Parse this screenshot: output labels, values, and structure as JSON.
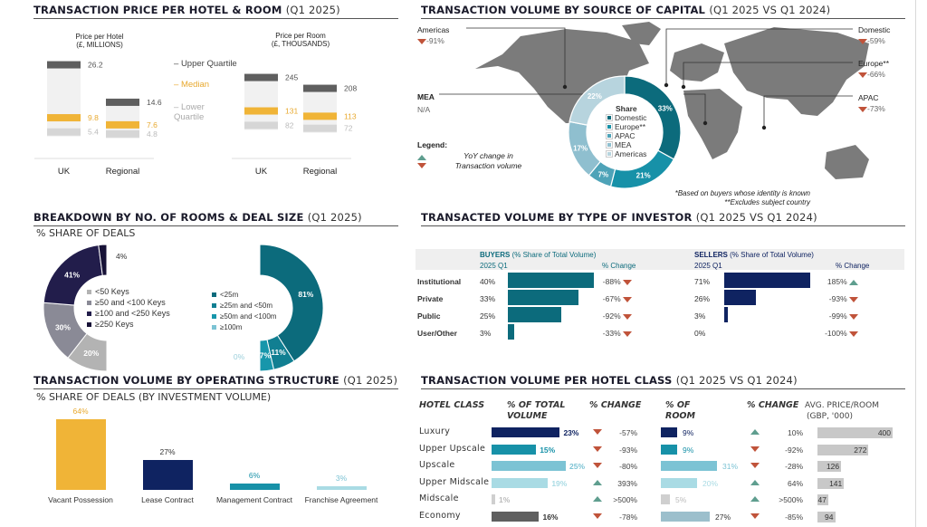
{
  "colors": {
    "dark_gray": "#5f5f5f",
    "light_gray": "#d6d6d6",
    "bg_gray": "#f1f1f1",
    "gold": "#f0b437",
    "navy": "#0f2361",
    "teal_dark": "#0c6b7c",
    "teal": "#1791a8",
    "teal_light": "#7cc3d4",
    "teal_pale": "#a9dbe4",
    "steel_light": "#9cbfcc",
    "down_red": "#c0533a",
    "up_green": "#5f9e8f",
    "map_gray": "#7b7b7b"
  },
  "price": {
    "title": "TRANSACTION PRICE PER HOTEL & ROOM",
    "title_sub": "(Q1 2025)",
    "legend": {
      "upper": "Upper Quartile",
      "median": "Median",
      "lower": "Lower Quartile"
    },
    "categories": [
      "UK",
      "Regional"
    ]
  },
  "capital": {
    "title": "TRANSACTION VOLUME BY SOURCE OF CAPITAL",
    "title_sub": "(Q1 2025 VS Q1 2024)",
    "regions": [
      {
        "name": "Americas",
        "change": "-91%",
        "dir": "down"
      },
      {
        "name": "MEA",
        "change": "N/A",
        "dir": "none"
      },
      {
        "name": "Domestic",
        "change": "-59%",
        "dir": "down"
      },
      {
        "name": "Europe**",
        "change": "-66%",
        "dir": "down"
      },
      {
        "name": "APAC",
        "change": "-73%",
        "dir": "down"
      }
    ],
    "legend_label": "Legend:",
    "legend_text_1": "YoY change in",
    "legend_text_2": "Transaction volume",
    "share_title": "Share",
    "footnote_1": "*Based on buyers whose identity is known",
    "footnote_2": "**Excludes subject country"
  },
  "breakdown": {
    "title": "BREAKDOWN BY NO. OF ROOMS & DEAL SIZE",
    "title_sub": "(Q1 2025)",
    "subtitle": "% SHARE OF DEALS"
  },
  "investor": {
    "title": "TRANSACTED VOLUME BY TYPE OF INVESTOR",
    "title_sub": "(Q1 2025 VS Q1 2024)",
    "buyers_title": "BUYERS",
    "buyers_sub": "(% Share of Total Volume)",
    "sellers_title": "SELLERS",
    "sellers_sub": "(% Share of Total Volume)",
    "period": "2025 Q1",
    "change_label": "% Change",
    "rows": [
      "Institutional",
      "Private",
      "Public",
      "User/Other"
    ]
  },
  "operating": {
    "title": "TRANSACTION VOLUME BY OPERATING STRUCTURE",
    "title_sub": "(Q1 2025)",
    "subtitle": "% SHARE OF DEALS (BY INVESTMENT VOLUME)"
  },
  "hotel_class": {
    "title": "TRANSACTION VOLUME PER HOTEL CLASS",
    "title_sub": "(Q1 2025 VS Q1 2024)",
    "headers": {
      "class": "HOTEL CLASS",
      "vol_1": "% OF TOTAL",
      "vol_2": "VOLUME",
      "chg": "% CHANGE",
      "room_1": "% OF",
      "room_2": "ROOM",
      "chg2": "% CHANGE",
      "price_1": "AVG. PRICE/ROOM",
      "price_2": "(GBP, '000)"
    }
  },
  "chart_data": [
    {
      "id": "price_per_hotel",
      "type": "bar",
      "title": "Price per Hotel",
      "unit": "(£, MILLIONS)",
      "categories": [
        "UK",
        "Regional"
      ],
      "series": [
        {
          "name": "Upper Quartile",
          "values": [
            26.2,
            14.6
          ],
          "labels": [
            "26.2",
            "14.6"
          ]
        },
        {
          "name": "Median",
          "values": [
            9.8,
            7.6
          ],
          "labels": [
            "9.8",
            "7.6"
          ]
        },
        {
          "name": "Lower Quartile",
          "values": [
            5.4,
            4.8
          ],
          "labels": [
            "5.4",
            "4.8"
          ]
        }
      ],
      "ylim": [
        0,
        30
      ]
    },
    {
      "id": "price_per_room",
      "type": "bar",
      "title": "Price per Room",
      "unit": "(£, THOUSANDS)",
      "categories": [
        "UK",
        "Regional"
      ],
      "series": [
        {
          "name": "Upper Quartile",
          "values": [
            245,
            208
          ],
          "labels": [
            "245",
            "208"
          ]
        },
        {
          "name": "Median",
          "values": [
            131,
            113
          ],
          "labels": [
            "131",
            "113"
          ]
        },
        {
          "name": "Lower Quartile",
          "values": [
            82,
            72
          ],
          "labels": [
            "82",
            "72"
          ]
        }
      ],
      "ylim": [
        0,
        330
      ]
    },
    {
      "id": "source_of_capital",
      "type": "pie",
      "title": "Share",
      "categories": [
        "Domestic",
        "Europe**",
        "APAC",
        "MEA",
        "Americas"
      ],
      "values": [
        33,
        21,
        7,
        17,
        22
      ],
      "labels": [
        "33%",
        "21%",
        "7%",
        "17%",
        "22%"
      ]
    },
    {
      "id": "rooms_breakdown",
      "type": "pie",
      "title": "% SHARE OF DEALS by number of keys",
      "categories": [
        "<50 Keys",
        "≥50 and <100 Keys",
        "≥100 and <250 Keys",
        "≥250 Keys"
      ],
      "values": [
        20,
        30,
        41,
        4
      ],
      "labels": [
        "20%",
        "30%",
        "41%",
        "4%"
      ]
    },
    {
      "id": "deal_size",
      "type": "pie",
      "title": "% SHARE OF DEALS by deal size",
      "categories": [
        "<25m",
        "≥25m and <50m",
        "≥50m and <100m",
        "≥100m"
      ],
      "values": [
        81,
        11,
        7,
        0
      ],
      "labels": [
        "81%",
        "11%",
        "7%",
        "0%"
      ]
    },
    {
      "id": "investor_buyers",
      "type": "bar",
      "title": "BUYERS (% Share of Total Volume)",
      "categories": [
        "Institutional",
        "Private",
        "Public",
        "User/Other"
      ],
      "values": [
        40,
        33,
        25,
        3
      ],
      "labels": [
        "40%",
        "33%",
        "25%",
        "3%"
      ],
      "change": [
        "-88%",
        "-67%",
        "-92%",
        "-33%"
      ],
      "change_dir": [
        "down",
        "down",
        "down",
        "down"
      ]
    },
    {
      "id": "investor_sellers",
      "type": "bar",
      "title": "SELLERS (% Share of Total Volume)",
      "categories": [
        "Institutional",
        "Private",
        "Public",
        "User/Other"
      ],
      "values": [
        71,
        26,
        3,
        0
      ],
      "labels": [
        "71%",
        "26%",
        "3%",
        "0%"
      ],
      "change": [
        "185%",
        "-93%",
        "-99%",
        "-100%"
      ],
      "change_dir": [
        "up",
        "down",
        "down",
        "down"
      ]
    },
    {
      "id": "operating_structure",
      "type": "bar",
      "title": "% SHARE OF DEALS (BY INVESTMENT VOLUME)",
      "categories": [
        "Vacant Possession",
        "Lease Contract",
        "Management Contract",
        "Franchise Agreement"
      ],
      "values": [
        64,
        27,
        6,
        3
      ],
      "labels": [
        "64%",
        "27%",
        "6%",
        "3%"
      ],
      "ylim": [
        0,
        64
      ]
    },
    {
      "id": "hotel_class",
      "type": "table",
      "title": "TRANSACTION VOLUME PER HOTEL CLASS",
      "categories": [
        "Luxury",
        "Upper Upscale",
        "Upscale",
        "Upper Midscale",
        "Midscale",
        "Economy"
      ],
      "volume_share": [
        23,
        15,
        25,
        19,
        1,
        16
      ],
      "volume_labels": [
        "23%",
        "15%",
        "25%",
        "19%",
        "1%",
        "16%"
      ],
      "volume_change": [
        "-57%",
        "-93%",
        "-80%",
        "393%",
        ">500%",
        "-78%"
      ],
      "volume_change_dir": [
        "down",
        "down",
        "down",
        "up",
        "up",
        "down"
      ],
      "room_share": [
        9,
        9,
        31,
        20,
        5,
        27
      ],
      "room_labels": [
        "9%",
        "9%",
        "31%",
        "20%",
        "5%",
        "27%"
      ],
      "room_change": [
        "10%",
        "-92%",
        "-28%",
        "64%",
        ">500%",
        "-85%"
      ],
      "room_change_dir": [
        "up",
        "down",
        "down",
        "up",
        "up",
        "down"
      ],
      "avg_price": [
        400,
        272,
        126,
        141,
        47,
        94
      ],
      "avg_price_labels": [
        "400",
        "272",
        "126",
        "141",
        "47",
        "94"
      ]
    }
  ]
}
